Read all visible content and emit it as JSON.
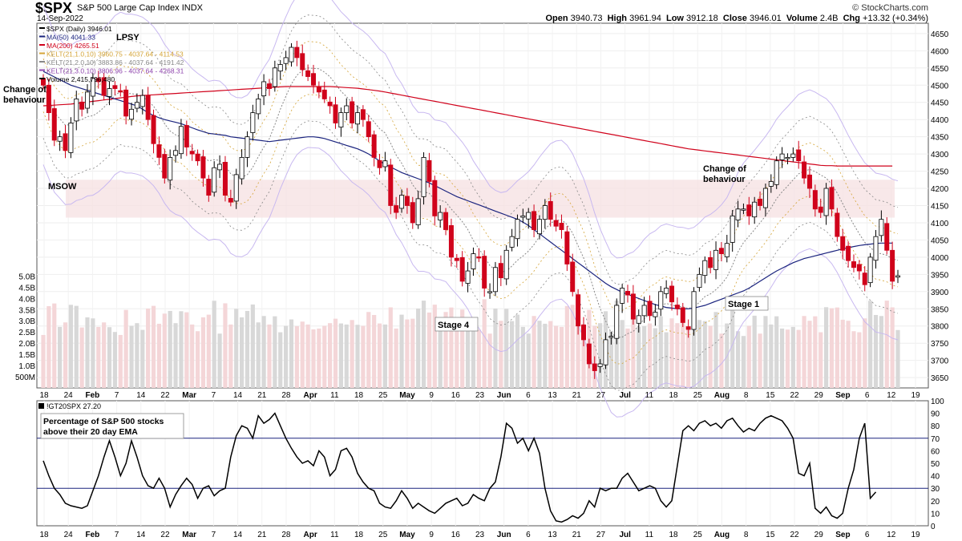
{
  "header": {
    "symbol": "$SPX",
    "name": "S&P 500 Large Cap Index",
    "exchange": "INDX",
    "date": "14-Sep-2022",
    "open_label": "Open",
    "open": "3940.73",
    "high_label": "High",
    "high": "3961.94",
    "low_label": "Low",
    "low": "3912.18",
    "close_label": "Close",
    "close": "3946.01",
    "volume_label": "Volume",
    "volume": "2.4B",
    "chg_label": "Chg",
    "chg": "+13.32 (+0.34%)",
    "logo": "© StockCharts.com"
  },
  "legend": [
    {
      "text": "$SPX (Daily) 3946.01",
      "color": "#000000"
    },
    {
      "text": "MA(50) 4041.33",
      "color": "#1a237e"
    },
    {
      "text": "MA(200) 4265.51",
      "color": "#d0021b"
    },
    {
      "text": "KELT(21,1.0,10) 3960.75 - 4037.64 - 4114.53",
      "color": "#d4a437"
    },
    {
      "text": "KELT(21,2.0,10) 3883.86 - 4037.64 - 4191.42",
      "color": "#888888"
    },
    {
      "text": "KELT(21,3.0,10) 3806.96 - 4037.64 - 4268.31",
      "color": "#8e44ad"
    },
    {
      "text": "Volume 2,415,796,480",
      "color": "#000000"
    }
  ],
  "annotations": {
    "lpsy": "LPSY",
    "cob_left": [
      "Change of",
      "behaviour"
    ],
    "msow": "MSOW",
    "cob_right": [
      "Change of",
      "behaviour"
    ],
    "stage4": "Stage 4",
    "stage1": "Stage 1",
    "indicator_title": "!GT20SPX 27.20",
    "indicator_note": [
      "Percentage of S&P 500 stocks",
      "above their 20 day EMA"
    ]
  },
  "colors": {
    "up": "#ffffff",
    "down": "#d0021b",
    "zone": "#f6e0e2",
    "ma50": "#1a237e",
    "ma200": "#d0021b",
    "kelt1": "#d4a437",
    "kelt2": "#888888",
    "kelt3": "#8e44ad"
  },
  "chart_data": [
    {
      "type": "candlestick",
      "title": "$SPX (Daily)",
      "ylim": [
        3620,
        4680
      ],
      "y_ticks": [
        "4650",
        "4600",
        "4550",
        "4500",
        "4450",
        "4400",
        "4350",
        "4300",
        "4250",
        "4200",
        "4150",
        "4100",
        "4050",
        "4000",
        "3950",
        "3900",
        "3850",
        "3800",
        "3750",
        "3700",
        "3650"
      ],
      "volume_ticks": [
        "5.0B",
        "4.5B",
        "4.0B",
        "3.5B",
        "3.0B",
        "2.5B",
        "2.0B",
        "1.5B",
        "1.0B",
        "500M"
      ],
      "volume_ylim": [
        0,
        5.3
      ],
      "x_ticks": [
        "18",
        "24",
        "Feb",
        "7",
        "14",
        "22",
        "Mar",
        "7",
        "14",
        "21",
        "28",
        "Apr",
        "11",
        "18",
        "25",
        "May",
        "9",
        "16",
        "23",
        "Jun",
        "6",
        "13",
        "21",
        "27",
        "Jul",
        "11",
        "18",
        "25",
        "Aug",
        "8",
        "15",
        "22",
        "29",
        "Sep",
        "6",
        "12",
        "19"
      ],
      "zone": [
        4115,
        4225
      ],
      "close": [
        4500,
        4420,
        4340,
        4350,
        4310,
        4390,
        4460,
        4430,
        4480,
        4520,
        4510,
        4470,
        4490,
        4490,
        4480,
        4410,
        4430,
        4450,
        4470,
        4400,
        4330,
        4290,
        4230,
        4290,
        4310,
        4380,
        4320,
        4300,
        4280,
        4230,
        4180,
        4260,
        4270,
        4180,
        4160,
        4240,
        4290,
        4350,
        4420,
        4460,
        4510,
        4490,
        4550,
        4560,
        4580,
        4610,
        4580,
        4545,
        4525,
        4500,
        4480,
        4460,
        4440,
        4390,
        4420,
        4440,
        4390,
        4420,
        4400,
        4350,
        4290,
        4260,
        4280,
        4150,
        4130,
        4180,
        4150,
        4100,
        4170,
        4290,
        4220,
        4120,
        4130,
        4080,
        4000,
        3990,
        3930,
        3960,
        4010,
        4000,
        3910,
        3900,
        3970,
        3940,
        4020,
        4060,
        4110,
        4120,
        4130,
        4080,
        4110,
        4150,
        4110,
        4090,
        4080,
        3980,
        3900,
        3800,
        3760,
        3690,
        3670,
        3690,
        3760,
        3770,
        3860,
        3910,
        3890,
        3820,
        3830,
        3860,
        3830,
        3840,
        3900,
        3910,
        3870,
        3850,
        3810,
        3790,
        3900,
        3950,
        3990,
        3970,
        4020,
        4010,
        4040,
        4120,
        4140,
        4140,
        4120,
        4160,
        4150,
        4200,
        4220,
        4280,
        4300,
        4290,
        4300,
        4280,
        4230,
        4200,
        4140,
        4130,
        4200,
        4140,
        4060,
        4020,
        3990,
        3970,
        3960,
        3920,
        4000,
        4060,
        4110,
        4020,
        3930,
        3946
      ],
      "ma50": [
        4540,
        4532,
        4524,
        4516,
        4508,
        4500,
        4495,
        4490,
        4485,
        4480,
        4475,
        4470,
        4465,
        4460,
        4455,
        4450,
        4445,
        4440,
        4430,
        4420,
        4412,
        4405,
        4400,
        4396,
        4392,
        4388,
        4382,
        4376,
        4370,
        4365,
        4360,
        4358,
        4356,
        4354,
        4350,
        4348,
        4346,
        4344,
        4342,
        4340,
        4338,
        4336,
        4338,
        4340,
        4342,
        4344,
        4346,
        4348,
        4350,
        4350,
        4348,
        4345,
        4340,
        4335,
        4330,
        4325,
        4320,
        4315,
        4308,
        4300,
        4290,
        4280,
        4270,
        4262,
        4254,
        4246,
        4240,
        4234,
        4228,
        4222,
        4216,
        4208,
        4200,
        4192,
        4184,
        4176,
        4170,
        4164,
        4158,
        4152,
        4146,
        4140,
        4134,
        4128,
        4122,
        4116,
        4110,
        4102,
        4092,
        4080,
        4068,
        4056,
        4044,
        4032,
        4020,
        4008,
        3996,
        3984,
        3972,
        3960,
        3948,
        3936,
        3924,
        3914,
        3906,
        3898,
        3892,
        3886,
        3880,
        3874,
        3868,
        3862,
        3858,
        3854,
        3852,
        3850,
        3850,
        3850,
        3852,
        3856,
        3860,
        3866,
        3872,
        3878,
        3884,
        3890,
        3896,
        3902,
        3910,
        3920,
        3930,
        3940,
        3950,
        3960,
        3968,
        3976,
        3984,
        3990,
        3996,
        4000,
        4004,
        4008,
        4012,
        4016,
        4020,
        4024,
        4028,
        4031,
        4034,
        4036,
        4038,
        4040,
        4041,
        4041,
        4041
      ],
      "ma200": [
        4440,
        4441,
        4442,
        4443,
        4444,
        4445,
        4447,
        4449,
        4451,
        4453,
        4455,
        4457,
        4459,
        4461,
        4463,
        4465,
        4467,
        4469,
        4470,
        4471,
        4472,
        4473,
        4474,
        4475,
        4476,
        4477,
        4478,
        4479,
        4480,
        4481,
        4482,
        4483,
        4484,
        4485,
        4486,
        4487,
        4488,
        4489,
        4490,
        4491,
        4492,
        4493,
        4494,
        4495,
        4496,
        4496,
        4496,
        4496,
        4496,
        4496,
        4496,
        4496,
        4496,
        4495,
        4494,
        4493,
        4492,
        4491,
        4489,
        4487,
        4485,
        4483,
        4480,
        4477,
        4474,
        4471,
        4468,
        4465,
        4462,
        4459,
        4456,
        4453,
        4450,
        4447,
        4444,
        4441,
        4438,
        4435,
        4432,
        4429,
        4426,
        4423,
        4420,
        4417,
        4414,
        4411,
        4408,
        4405,
        4402,
        4399,
        4396,
        4393,
        4390,
        4387,
        4384,
        4381,
        4378,
        4375,
        4372,
        4369,
        4366,
        4363,
        4360,
        4357,
        4354,
        4351,
        4348,
        4345,
        4342,
        4339,
        4336,
        4333,
        4330,
        4327,
        4324,
        4321,
        4318,
        4315,
        4313,
        4311,
        4309,
        4307,
        4305,
        4303,
        4301,
        4299,
        4297,
        4295,
        4293,
        4291,
        4289,
        4287,
        4285,
        4283,
        4281,
        4279,
        4277,
        4275,
        4273,
        4271,
        4269,
        4267,
        4266,
        4266,
        4265,
        4265,
        4265,
        4265,
        4265,
        4265,
        4265,
        4265,
        4265,
        4265,
        4265
      ],
      "indicator": {
        "title": "!GT20SPX",
        "ylim": [
          0,
          100
        ],
        "y_ticks": [
          "100",
          "90",
          "80",
          "70",
          "60",
          "50",
          "40",
          "30",
          "20",
          "10",
          "0"
        ],
        "levels": [
          70,
          30
        ],
        "values": [
          52,
          40,
          30,
          25,
          18,
          16,
          15,
          14,
          16,
          28,
          40,
          55,
          68,
          55,
          40,
          50,
          68,
          55,
          40,
          32,
          30,
          38,
          30,
          15,
          25,
          32,
          38,
          33,
          22,
          30,
          32,
          24,
          28,
          30,
          55,
          72,
          80,
          78,
          70,
          88,
          82,
          85,
          90,
          80,
          70,
          62,
          55,
          50,
          52,
          48,
          60,
          55,
          40,
          45,
          60,
          62,
          55,
          42,
          35,
          30,
          28,
          18,
          15,
          14,
          20,
          28,
          22,
          14,
          18,
          15,
          12,
          10,
          14,
          18,
          20,
          22,
          16,
          18,
          25,
          22,
          20,
          30,
          35,
          55,
          82,
          78,
          66,
          70,
          60,
          70,
          58,
          30,
          12,
          4,
          3,
          5,
          8,
          6,
          10,
          20,
          15,
          30,
          28,
          30,
          30,
          38,
          42,
          35,
          28,
          30,
          32,
          30,
          20,
          15,
          20,
          48,
          76,
          80,
          76,
          82,
          84,
          80,
          82,
          78,
          84,
          86,
          80,
          75,
          78,
          76,
          82,
          86,
          88,
          86,
          84,
          78,
          70,
          42,
          40,
          50,
          14,
          10,
          15,
          8,
          6,
          10,
          30,
          45,
          70,
          82,
          22,
          27
        ]
      }
    }
  ]
}
